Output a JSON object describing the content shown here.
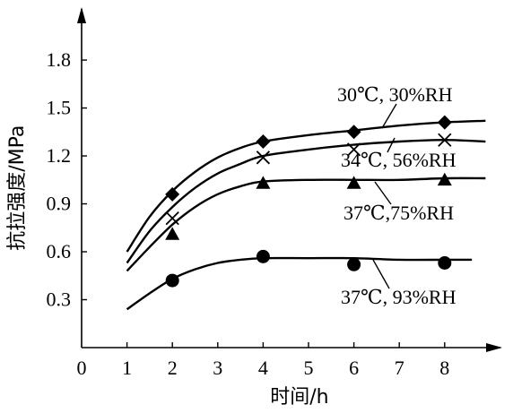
{
  "chart_data": {
    "type": "line",
    "xlabel": "时间/h",
    "ylabel": "抗拉强度/MPa",
    "xlim": [
      0,
      9
    ],
    "ylim": [
      0,
      2.0
    ],
    "xticks": [
      0,
      1,
      2,
      3,
      4,
      5,
      6,
      7,
      8
    ],
    "yticks": [
      0.3,
      0.6,
      0.9,
      1.2,
      1.5,
      1.8
    ],
    "xtick_labels": [
      "0",
      "1",
      "2",
      "3",
      "4",
      "5",
      "6",
      "7",
      "8"
    ],
    "ytick_labels": [
      "0.3",
      "0.6",
      "0.9",
      "1.2",
      "1.5",
      "1.8"
    ],
    "grid": false,
    "series": [
      {
        "name": "30℃, 30%RH",
        "marker": "diamond",
        "x": [
          2,
          4,
          6,
          8
        ],
        "y": [
          0.96,
          1.29,
          1.35,
          1.41
        ],
        "curve_x": [
          1.0,
          1.5,
          2.0,
          2.5,
          3.0,
          3.5,
          4.0,
          5.0,
          6.0,
          7.0,
          8.0,
          8.9
        ],
        "curve_y": [
          0.6,
          0.82,
          0.98,
          1.1,
          1.19,
          1.25,
          1.29,
          1.33,
          1.36,
          1.39,
          1.41,
          1.42
        ]
      },
      {
        "name": "34℃, 56%RH",
        "marker": "cross",
        "x": [
          2,
          4,
          6,
          8
        ],
        "y": [
          0.81,
          1.19,
          1.24,
          1.3
        ],
        "curve_x": [
          1.0,
          1.5,
          2.0,
          2.5,
          3.0,
          3.5,
          4.0,
          5.0,
          6.0,
          7.0,
          8.0,
          8.9
        ],
        "curve_y": [
          0.53,
          0.73,
          0.88,
          1.0,
          1.09,
          1.15,
          1.2,
          1.24,
          1.27,
          1.29,
          1.3,
          1.29
        ]
      },
      {
        "name": "37℃,75%RH",
        "marker": "triangle",
        "x": [
          2,
          4,
          6,
          8
        ],
        "y": [
          0.71,
          1.03,
          1.03,
          1.05
        ],
        "curve_x": [
          1.0,
          1.5,
          2.0,
          2.5,
          3.0,
          3.5,
          4.0,
          5.0,
          6.0,
          7.0,
          8.0,
          8.9
        ],
        "curve_y": [
          0.48,
          0.63,
          0.77,
          0.88,
          0.96,
          1.01,
          1.04,
          1.05,
          1.05,
          1.05,
          1.06,
          1.06
        ]
      },
      {
        "name": "37℃, 93%RH",
        "marker": "circle",
        "x": [
          2,
          4,
          6,
          8
        ],
        "y": [
          0.42,
          0.57,
          0.52,
          0.53
        ],
        "curve_x": [
          1.0,
          1.5,
          2.0,
          2.5,
          3.0,
          3.5,
          4.0,
          5.0,
          6.0,
          7.0,
          8.0,
          8.6
        ],
        "curve_y": [
          0.24,
          0.34,
          0.43,
          0.49,
          0.53,
          0.55,
          0.56,
          0.56,
          0.56,
          0.55,
          0.55,
          0.55
        ]
      }
    ],
    "annotations": [
      {
        "text": "30℃, 30%RH",
        "series": 0
      },
      {
        "text": "34℃, 56%RH",
        "series": 1
      },
      {
        "text": "37℃,75%RH",
        "series": 2
      },
      {
        "text": "37℃, 93%RH",
        "series": 3
      }
    ]
  },
  "colors": {
    "line": "#000000",
    "background": "#ffffff"
  }
}
